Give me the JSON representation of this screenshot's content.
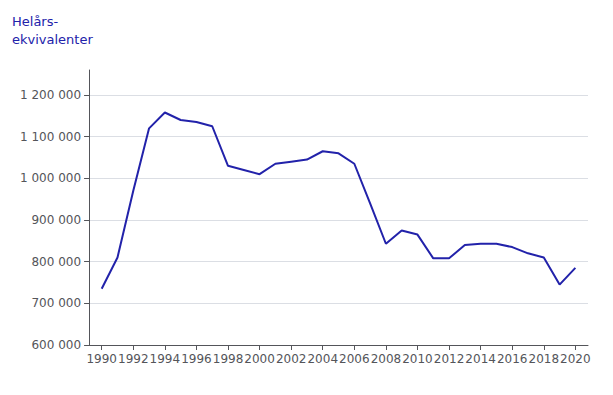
{
  "chart_data": {
    "type": "line",
    "ylabel": "Helårs-\nekvivalenter",
    "x": [
      1990,
      1991,
      1992,
      1993,
      1994,
      1995,
      1996,
      1997,
      1998,
      1999,
      2000,
      2001,
      2002,
      2003,
      2004,
      2005,
      2006,
      2007,
      2008,
      2009,
      2010,
      2011,
      2012,
      2013,
      2014,
      2015,
      2016,
      2017,
      2018,
      2019,
      2020
    ],
    "values": [
      735000,
      810000,
      970000,
      1120000,
      1158000,
      1140000,
      1135000,
      1125000,
      1030000,
      1020000,
      1010000,
      1035000,
      1040000,
      1045000,
      1065000,
      1060000,
      1035000,
      940000,
      843000,
      875000,
      865000,
      808000,
      808000,
      840000,
      843000,
      843000,
      835000,
      820000,
      810000,
      745000,
      785000
    ],
    "color": "#2222AA",
    "xlim": [
      1989.2,
      2020.8
    ],
    "xticks": [
      1990,
      1992,
      1994,
      1996,
      1998,
      2000,
      2002,
      2004,
      2006,
      2008,
      2010,
      2012,
      2014,
      2016,
      2018,
      2020
    ],
    "ylim": [
      600000,
      1260000
    ],
    "yticks": [
      {
        "value": 600000,
        "label": "600 000"
      },
      {
        "value": 700000,
        "label": "700 000"
      },
      {
        "value": 800000,
        "label": "800 000"
      },
      {
        "value": 900000,
        "label": "900 000"
      },
      {
        "value": 1000000,
        "label": "1 000 000"
      },
      {
        "value": 1100000,
        "label": "1 100 000"
      },
      {
        "value": 1200000,
        "label": "1 200 000"
      }
    ],
    "grid": true
  }
}
